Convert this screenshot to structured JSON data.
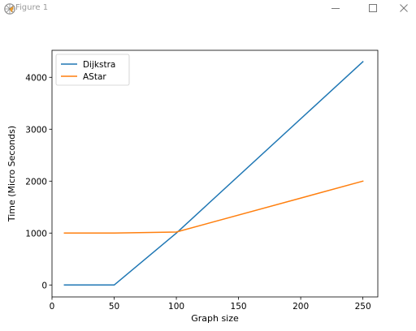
{
  "window": {
    "title": "Figure 1",
    "controls": [
      "minimize-icon",
      "maximize-icon",
      "close-icon"
    ]
  },
  "chart_data": {
    "type": "line",
    "title": "",
    "xlabel": "Graph size",
    "ylabel": "Time (Micro Seconds)",
    "xlim": [
      0,
      262
    ],
    "ylim": [
      -230,
      4520
    ],
    "xticks": [
      0,
      50,
      100,
      150,
      200,
      250
    ],
    "yticks": [
      0,
      1000,
      2000,
      3000,
      4000
    ],
    "grid": false,
    "legend_position": "top-left",
    "series": [
      {
        "name": "Dijkstra",
        "color": "#1f77b4",
        "x": [
          10,
          50,
          100,
          250
        ],
        "y": [
          0,
          0,
          1000,
          4300
        ]
      },
      {
        "name": "AStar",
        "color": "#ff7f0e",
        "x": [
          10,
          50,
          100,
          250
        ],
        "y": [
          1000,
          1000,
          1020,
          2000
        ]
      }
    ]
  }
}
